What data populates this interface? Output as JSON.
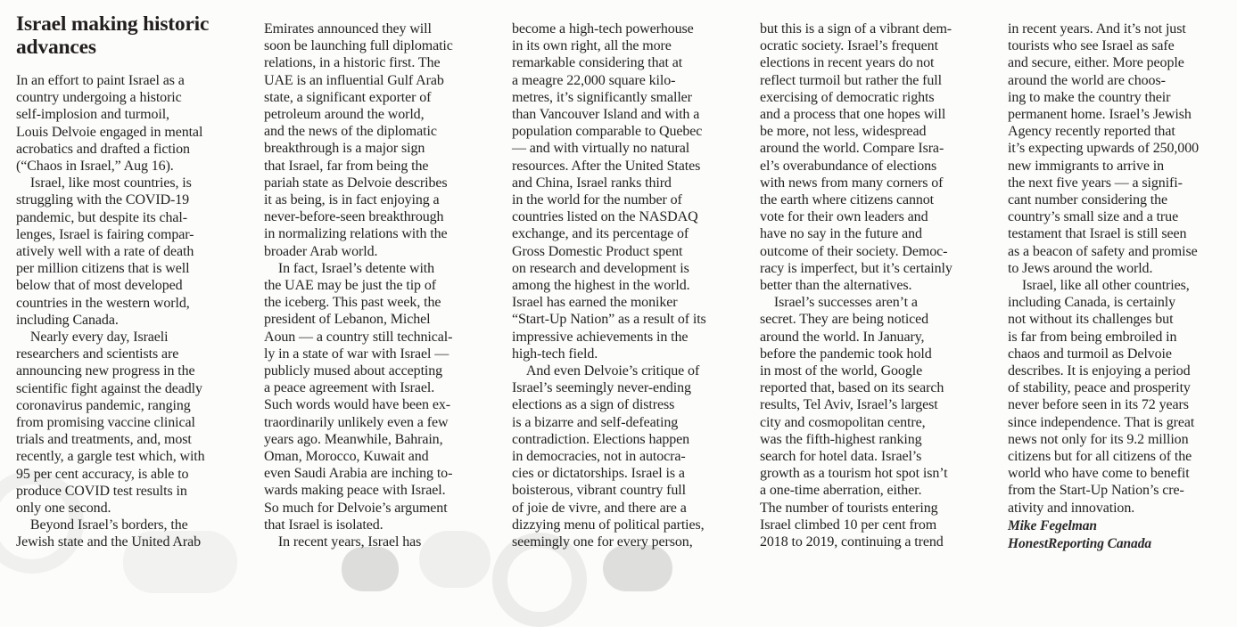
{
  "page": {
    "background_color": "#fcfcfa",
    "text_color": "#242223",
    "headline_color": "#221e1f"
  },
  "article": {
    "headline_lines": [
      "Israel making historic",
      "advances"
    ],
    "columns": [
      {
        "lines": [
          "In an effort to paint Israel as a",
          "country undergoing a historic",
          "self-implosion and turmoil,",
          "Louis Delvoie engaged in mental",
          "acrobatics and drafted a fiction",
          "(“Chaos in Israel,” Aug 16).",
          " Israel, like most countries, is",
          "struggling with the COVID-19",
          "pandemic, but despite its chal-",
          "lenges, Israel is fairing compar-",
          "atively well with a rate of death",
          "per million citizens that is well",
          "below that of most developed",
          "countries in the western world,",
          "including Canada.",
          " Nearly every day, Israeli",
          "researchers and scientists are",
          "announcing new progress in the",
          "scientific fight against the deadly",
          "coronavirus pandemic, ranging",
          "from promising vaccine clinical",
          "trials and treatments, and, most",
          "recently, a gargle test which, with",
          "95 per cent accuracy, is able to",
          "produce COVID test results in",
          "only one second.",
          " Beyond Israel’s borders, the",
          "Jewish state and the United Arab"
        ]
      },
      {
        "lines": [
          "Emirates announced they will",
          "soon be launching full diplomatic",
          "relations, in a historic first. The",
          "UAE is an influential Gulf Arab",
          "state, a significant exporter of",
          "petroleum around the world,",
          "and the news of the diplomatic",
          "breakthrough is a major sign",
          "that Israel, far from being the",
          "pariah state as Delvoie describes",
          "it as being, is in fact enjoying a",
          "never-before-seen breakthrough",
          "in normalizing relations with the",
          "broader Arab world.",
          " In fact, Israel’s detente with",
          "the UAE may be just the tip of",
          "the iceberg. This past week, the",
          "president of Lebanon, Michel",
          "Aoun — a country still technical-",
          "ly in a state of war with Israel —",
          "publicly mused about accepting",
          "a peace agreement with Israel.",
          "Such words would have been ex-",
          "traordinarily unlikely even a few",
          "years ago. Meanwhile, Bahrain,",
          "Oman, Morocco, Kuwait and",
          "even Saudi Arabia are inching to-",
          "wards making peace with Israel.",
          "So much for Delvoie’s argument",
          "that Israel is isolated.",
          " In recent years, Israel has"
        ]
      },
      {
        "lines": [
          "become a high-tech powerhouse",
          "in its own right, all the more",
          "remarkable considering that at",
          "a meagre 22,000 square kilo-",
          "metres, it’s significantly smaller",
          "than Vancouver Island and with a",
          "population comparable to Quebec",
          "— and with virtually no natural",
          "resources. After the United States",
          "and China, Israel ranks third",
          "in the world for the number of",
          "countries listed on the NASDAQ",
          "exchange, and its percentage of",
          "Gross Domestic Product spent",
          "on research and development is",
          "among the highest in the world.",
          "Israel has earned the moniker",
          "“Start-Up Nation” as a result of its",
          "impressive achievements in the",
          "high-tech field.",
          " And even Delvoie’s critique of",
          "Israel’s seemingly never-ending",
          "elections as a sign of distress",
          "is a bizarre and self-defeating",
          "contradiction. Elections happen",
          "in democracies, not in autocra-",
          "cies or dictatorships. Israel is a",
          "boisterous, vibrant country full",
          "of joie de vivre, and there are a",
          "dizzying menu of political parties,",
          "seemingly one for every person,"
        ]
      },
      {
        "lines": [
          "but this is a sign of a vibrant dem-",
          "ocratic society. Israel’s frequent",
          "elections in recent years do not",
          "reflect turmoil but rather the full",
          "exercising of democratic rights",
          "and a process that one hopes will",
          "be more, not less, widespread",
          "around the world. Compare Isra-",
          "el’s overabundance of elections",
          "with news from many corners of",
          "the earth where citizens cannot",
          "vote for their own leaders and",
          "have no say in the future and",
          "outcome of their society. Democ-",
          "racy is imperfect, but it’s certainly",
          "better than the alternatives.",
          " Israel’s successes aren’t a",
          "secret. They are being noticed",
          "around the world. In January,",
          "before the pandemic took hold",
          "in most of the world, Google",
          "reported that, based on its search",
          "results, Tel Aviv, Israel’s largest",
          "city and cosmopolitan centre,",
          "was the fifth-highest ranking",
          "search for hotel data. Israel’s",
          "growth as a tourism hot spot isn’t",
          "a one-time aberration, either.",
          "The number of tourists entering",
          "Israel climbed 10 per cent from",
          "2018 to 2019, continuing a trend"
        ]
      },
      {
        "lines": [
          "in recent years. And it’s not just",
          "tourists who see Israel as safe",
          "and secure, either. More people",
          "around the world are choos-",
          "ing to make the country their",
          "permanent home. Israel’s Jewish",
          "Agency recently reported that",
          "it’s expecting upwards of 250,000",
          "new immigrants to arrive in",
          "the next five years — a signifi-",
          "cant number considering the",
          "country’s small size and a true",
          "testament that Israel is still seen",
          "as a beacon of safety and promise",
          "to Jews around the world.",
          " Israel, like all other countries,",
          "including Canada, is certainly",
          "not without its challenges but",
          "is far from being embroiled in",
          "chaos and turmoil as Delvoie",
          "describes. It is enjoying a period",
          "of stability, peace and prosperity",
          "never before seen in its 72 years",
          "since independence. That is great",
          "news not only for its 9.2 million",
          "citizens but for all citizens of the",
          "world who have come to benefit",
          "from the Start-Up Nation’s cre-",
          "ativity and innovation."
        ]
      }
    ],
    "signature": {
      "author": "Mike Fegelman",
      "org": "HonestReporting Canada"
    }
  }
}
